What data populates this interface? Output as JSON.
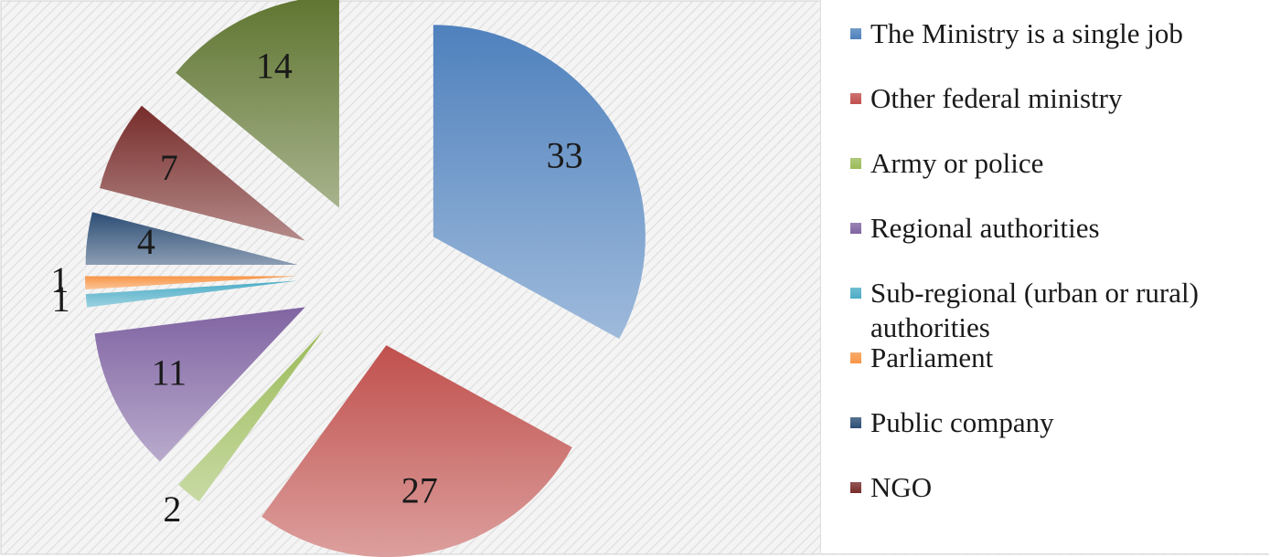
{
  "chart_data": {
    "type": "pie",
    "categories": [
      "The Ministry is a single job",
      "Other federal ministry",
      "Army or police",
      "Regional authorities",
      "Sub-regional (urban or rural) authorities",
      "Parliament",
      "Public company",
      "NGO",
      null
    ],
    "values": [
      33,
      27,
      2,
      11,
      1,
      1,
      4,
      7,
      14
    ],
    "colors": [
      "#4f81bd",
      "#c0504d",
      "#9bbb59",
      "#8064a2",
      "#4bacc6",
      "#f79646",
      "#2c4d75",
      "#772c2a",
      "#5f7530"
    ],
    "legend": "right"
  }
}
